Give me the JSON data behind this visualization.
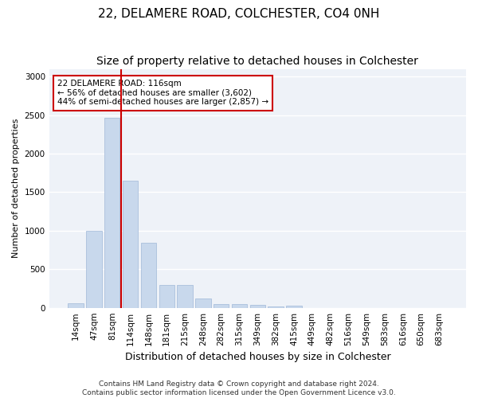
{
  "title1": "22, DELAMERE ROAD, COLCHESTER, CO4 0NH",
  "title2": "Size of property relative to detached houses in Colchester",
  "xlabel": "Distribution of detached houses by size in Colchester",
  "ylabel": "Number of detached properties",
  "categories": [
    "14sqm",
    "47sqm",
    "81sqm",
    "114sqm",
    "148sqm",
    "181sqm",
    "215sqm",
    "248sqm",
    "282sqm",
    "315sqm",
    "349sqm",
    "382sqm",
    "415sqm",
    "449sqm",
    "482sqm",
    "516sqm",
    "549sqm",
    "583sqm",
    "616sqm",
    "650sqm",
    "683sqm"
  ],
  "values": [
    55,
    1000,
    2470,
    1650,
    840,
    295,
    295,
    120,
    50,
    50,
    35,
    20,
    30,
    0,
    0,
    0,
    0,
    0,
    0,
    0,
    0
  ],
  "bar_color": "#c8d8ec",
  "bar_edge_color": "#a0b8d8",
  "vline_color": "#cc0000",
  "annotation_text": "22 DELAMERE ROAD: 116sqm\n← 56% of detached houses are smaller (3,602)\n44% of semi-detached houses are larger (2,857) →",
  "annotation_box_color": "#ffffff",
  "annotation_box_edge": "#cc0000",
  "footnote": "Contains HM Land Registry data © Crown copyright and database right 2024.\nContains public sector information licensed under the Open Government Licence v3.0.",
  "ylim": [
    0,
    3100
  ],
  "background_color": "#eef2f8",
  "grid_color": "#ffffff",
  "title1_fontsize": 11,
  "title2_fontsize": 10,
  "xlabel_fontsize": 9,
  "ylabel_fontsize": 8,
  "footnote_fontsize": 6.5,
  "tick_fontsize": 7.5
}
